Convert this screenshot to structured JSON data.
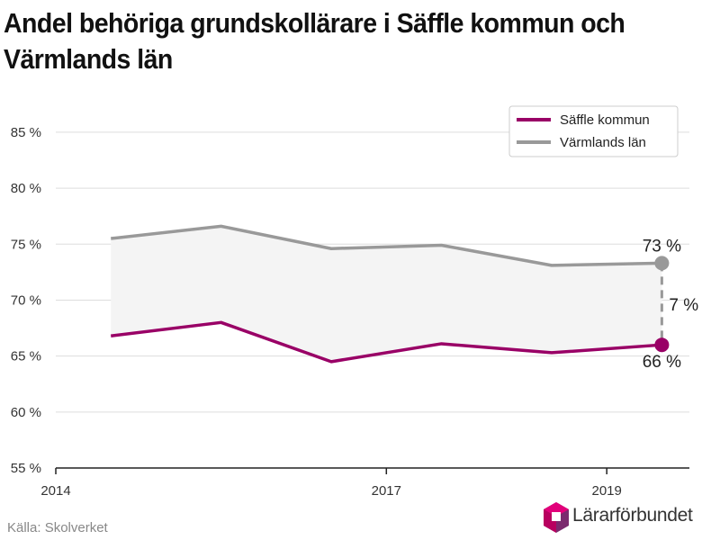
{
  "title": "Andel behöriga grundskollärare i Säffle kommun och Värmlands län",
  "source": "Källa: Skolverket",
  "logo_text": "Lärarförbundet",
  "colors": {
    "saffle": "#990066",
    "varmland": "#999999",
    "band": "#f4f4f4",
    "grid": "#dddddd",
    "axis": "#222222",
    "logo_pink": "#e2007a",
    "logo_purple": "#7b2a6e"
  },
  "chart_data": {
    "type": "line",
    "x_ticks": [
      2014,
      2017,
      2019
    ],
    "y_ticks": [
      "55 %",
      "60 %",
      "65 %",
      "70 %",
      "75 %",
      "80 %",
      "85 %"
    ],
    "ylim": [
      55,
      87
    ],
    "xlim": [
      2014,
      2019.75
    ],
    "x": [
      2014.5,
      2015.5,
      2016.5,
      2017.5,
      2018.5,
      2019.5
    ],
    "series": [
      {
        "name": "Säffle kommun",
        "color_key": "saffle",
        "values": [
          66.8,
          68.0,
          64.5,
          66.1,
          65.3,
          66.0
        ]
      },
      {
        "name": "Värmlands län",
        "color_key": "varmland",
        "values": [
          75.5,
          76.6,
          74.6,
          74.9,
          73.1,
          73.3
        ]
      }
    ],
    "end_labels": {
      "top": "73 %",
      "bottom": "66 %",
      "difference": "7 %"
    },
    "legend_position": "top-right",
    "grid": true
  }
}
